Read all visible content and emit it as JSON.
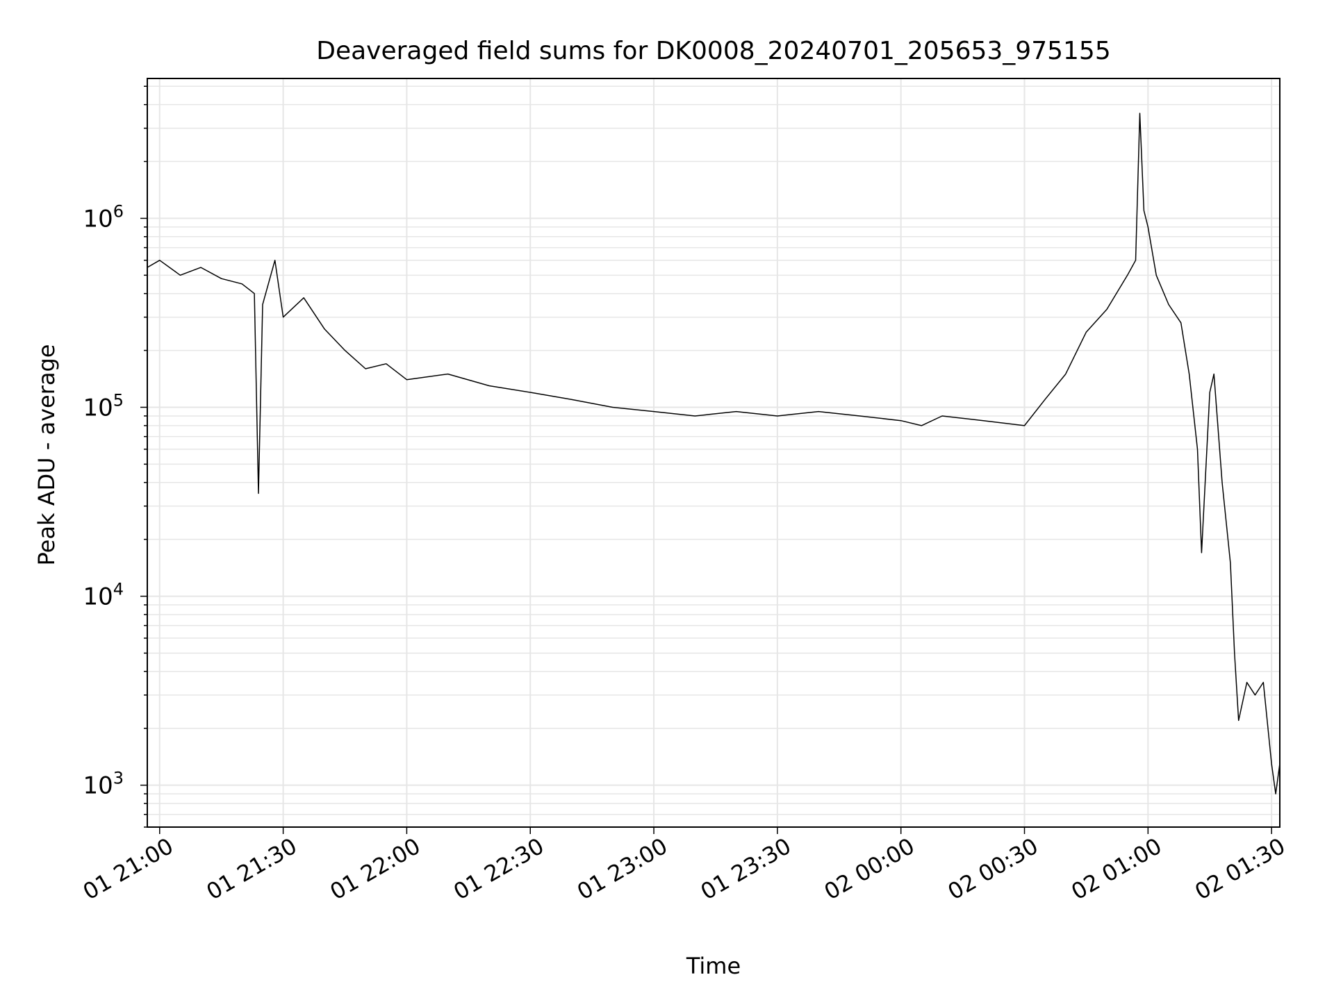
{
  "chart_data": {
    "type": "line",
    "title": "Deaveraged field sums for DK0008_20240701_205653_975155",
    "xlabel": "Time",
    "ylabel": "Peak ADU - average",
    "y_scale": "log",
    "grid": true,
    "grid_color": "#e6e6e6",
    "line_color": "#000000",
    "x_range": [
      "01 20:57",
      "02 01:32"
    ],
    "ylim": [
      600,
      5500000
    ],
    "x_ticks": [
      {
        "time": "01 21:00",
        "label": "01 21:00"
      },
      {
        "time": "01 21:30",
        "label": "01 21:30"
      },
      {
        "time": "01 22:00",
        "label": "01 22:00"
      },
      {
        "time": "01 22:30",
        "label": "01 22:30"
      },
      {
        "time": "01 23:00",
        "label": "01 23:00"
      },
      {
        "time": "01 23:30",
        "label": "01 23:30"
      },
      {
        "time": "02 00:00",
        "label": "02 00:00"
      },
      {
        "time": "02 00:30",
        "label": "02 00:30"
      },
      {
        "time": "02 01:00",
        "label": "02 01:00"
      },
      {
        "time": "02 01:30",
        "label": "02 01:30"
      }
    ],
    "y_ticks": [
      {
        "value": 1000,
        "base": "10",
        "exp": "3"
      },
      {
        "value": 10000,
        "base": "10",
        "exp": "4"
      },
      {
        "value": 100000,
        "base": "10",
        "exp": "5"
      },
      {
        "value": 1000000,
        "base": "10",
        "exp": "6"
      }
    ],
    "series": [
      {
        "points": [
          [
            "01 20:57",
            550000
          ],
          [
            "01 21:00",
            600000
          ],
          [
            "01 21:05",
            500000
          ],
          [
            "01 21:10",
            550000
          ],
          [
            "01 21:15",
            480000
          ],
          [
            "01 21:20",
            450000
          ],
          [
            "01 21:23",
            400000
          ],
          [
            "01 21:24",
            35000
          ],
          [
            "01 21:25",
            350000
          ],
          [
            "01 21:28",
            600000
          ],
          [
            "01 21:30",
            300000
          ],
          [
            "01 21:35",
            380000
          ],
          [
            "01 21:40",
            260000
          ],
          [
            "01 21:45",
            200000
          ],
          [
            "01 21:50",
            160000
          ],
          [
            "01 21:55",
            170000
          ],
          [
            "01 22:00",
            140000
          ],
          [
            "01 22:10",
            150000
          ],
          [
            "01 22:20",
            130000
          ],
          [
            "01 22:30",
            120000
          ],
          [
            "01 22:40",
            110000
          ],
          [
            "01 22:50",
            100000
          ],
          [
            "01 23:00",
            95000
          ],
          [
            "01 23:10",
            90000
          ],
          [
            "01 23:20",
            95000
          ],
          [
            "01 23:30",
            90000
          ],
          [
            "01 23:40",
            95000
          ],
          [
            "01 23:50",
            90000
          ],
          [
            "02 00:00",
            85000
          ],
          [
            "02 00:05",
            80000
          ],
          [
            "02 00:10",
            90000
          ],
          [
            "02 00:20",
            85000
          ],
          [
            "02 00:30",
            80000
          ],
          [
            "02 00:35",
            110000
          ],
          [
            "02 00:40",
            150000
          ],
          [
            "02 00:45",
            250000
          ],
          [
            "02 00:50",
            330000
          ],
          [
            "02 00:55",
            500000
          ],
          [
            "02 00:57",
            600000
          ],
          [
            "02 00:58",
            3600000
          ],
          [
            "02 00:59",
            1100000
          ],
          [
            "02 01:00",
            900000
          ],
          [
            "02 01:02",
            500000
          ],
          [
            "02 01:05",
            350000
          ],
          [
            "02 01:08",
            280000
          ],
          [
            "02 01:10",
            150000
          ],
          [
            "02 01:12",
            60000
          ],
          [
            "02 01:13",
            17000
          ],
          [
            "02 01:15",
            120000
          ],
          [
            "02 01:16",
            150000
          ],
          [
            "02 01:18",
            40000
          ],
          [
            "02 01:20",
            15000
          ],
          [
            "02 01:21",
            5000
          ],
          [
            "02 01:22",
            2200
          ],
          [
            "02 01:24",
            3500
          ],
          [
            "02 01:26",
            3000
          ],
          [
            "02 01:28",
            3500
          ],
          [
            "02 01:30",
            1300
          ],
          [
            "02 01:31",
            900
          ],
          [
            "02 01:32",
            1300
          ]
        ]
      }
    ]
  }
}
